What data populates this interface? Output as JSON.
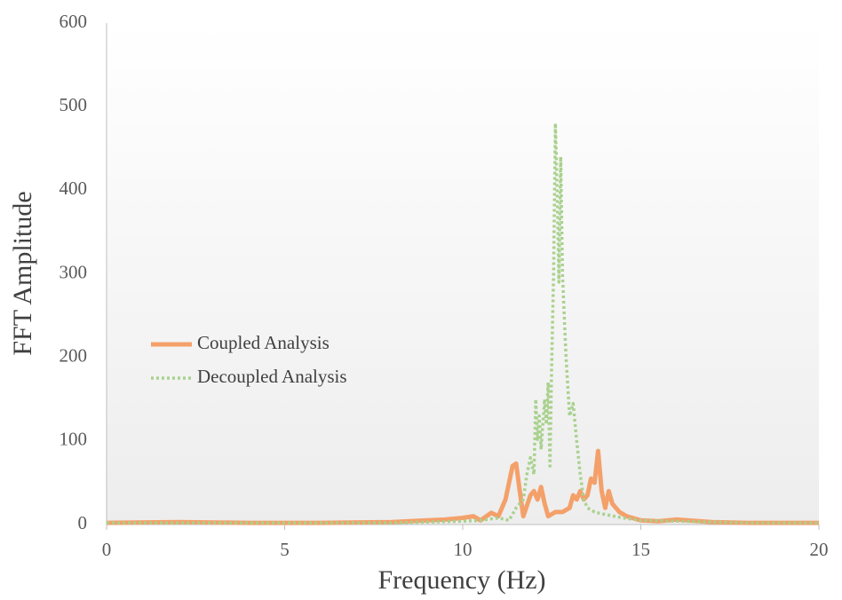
{
  "chart_data": {
    "type": "line",
    "x_label": "Frequency (Hz)",
    "y_label": "FFT Amplitude",
    "xlim": [
      0,
      20
    ],
    "xticks": [
      0,
      5,
      10,
      15,
      20
    ],
    "ylim": [
      0,
      600
    ],
    "yticks": [
      0,
      100,
      200,
      300,
      400,
      500,
      600
    ],
    "grid": false,
    "legend": "left",
    "series": [
      {
        "name": "Coupled Analysis",
        "color": "#f4a06a",
        "style": "solid",
        "x": [
          0,
          2,
          4,
          6,
          8,
          8.5,
          9,
          9.5,
          10,
          10.3,
          10.5,
          10.8,
          11,
          11.2,
          11.4,
          11.5,
          11.6,
          11.7,
          11.9,
          12.0,
          12.1,
          12.2,
          12.3,
          12.4,
          12.6,
          12.8,
          13.0,
          13.1,
          13.2,
          13.3,
          13.4,
          13.5,
          13.6,
          13.7,
          13.8,
          13.9,
          14.0,
          14.1,
          14.2,
          14.4,
          14.6,
          15,
          15.5,
          16,
          17,
          18,
          20
        ],
        "values": [
          2,
          3,
          2,
          2,
          3,
          4,
          5,
          6,
          8,
          10,
          5,
          14,
          10,
          30,
          70,
          73,
          40,
          10,
          35,
          40,
          30,
          45,
          25,
          10,
          15,
          15,
          20,
          35,
          30,
          40,
          30,
          35,
          55,
          50,
          88,
          40,
          20,
          40,
          25,
          15,
          10,
          5,
          4,
          6,
          3,
          2,
          2
        ]
      },
      {
        "name": "Decoupled Analysis",
        "color": "#a9d18e",
        "style": "dotted",
        "x": [
          0,
          2,
          4,
          6,
          8,
          9,
          10,
          10.5,
          11,
          11.3,
          11.5,
          11.7,
          11.8,
          11.9,
          12.0,
          12.05,
          12.1,
          12.15,
          12.2,
          12.3,
          12.35,
          12.4,
          12.45,
          12.5,
          12.55,
          12.6,
          12.65,
          12.7,
          12.75,
          12.8,
          12.9,
          13.0,
          13.1,
          13.2,
          13.3,
          13.4,
          13.5,
          13.7,
          14,
          14.5,
          15,
          16,
          17,
          18,
          20
        ],
        "values": [
          2,
          2,
          2,
          2,
          2,
          3,
          4,
          5,
          8,
          5,
          20,
          30,
          60,
          80,
          60,
          150,
          100,
          130,
          90,
          150,
          120,
          170,
          70,
          200,
          300,
          480,
          400,
          290,
          440,
          300,
          200,
          130,
          145,
          100,
          60,
          30,
          20,
          15,
          12,
          8,
          5,
          4,
          3,
          2,
          2
        ]
      }
    ]
  }
}
